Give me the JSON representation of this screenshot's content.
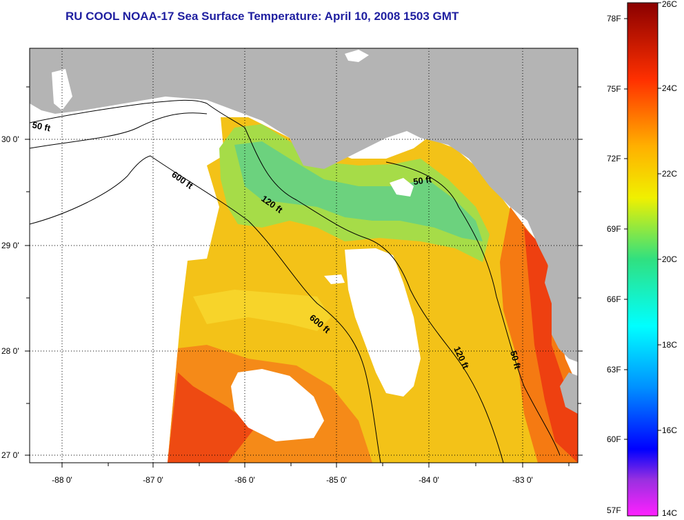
{
  "title": "RU COOL  NOAA-17  Sea Surface Temperature:  April 10, 2008 1503 GMT",
  "lat_ticks": [
    "30 0'",
    "29 0'",
    "28 0'",
    "27 0'"
  ],
  "lon_ticks": [
    "-88 0'",
    "-87 0'",
    "-86 0'",
    "-85 0'",
    "-84 0'",
    "-83 0'"
  ],
  "contours": {
    "c50_west": "50 ft",
    "c600_north": "600 ft",
    "c120_north": "120 ft",
    "c50_north": "50 ft",
    "c600_south": "600 ft",
    "c120_south": "120 ft",
    "c50_south": "50 ft"
  },
  "scale_f": [
    "78F",
    "75F",
    "72F",
    "69F",
    "66F",
    "63F",
    "60F",
    "57F"
  ],
  "scale_c": [
    "26C",
    "24C",
    "22C",
    "20C",
    "18C",
    "16C",
    "14C"
  ],
  "colors": {
    "land": "#b4b4b4",
    "cloud": "#ffffff",
    "title": "#1f1fa0"
  }
}
